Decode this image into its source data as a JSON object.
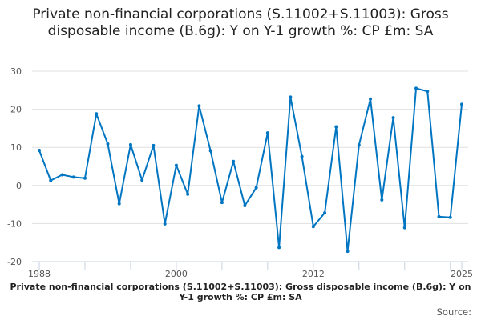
{
  "chart_data": {
    "type": "line",
    "title": "Private non-financial corporations (S.11002+S.11003): Gross disposable income (B.6g): Y on Y-1 growth %: CP £m: SA",
    "xlabel": "Private non-financial corporations (S.11002+S.11003): Gross disposable income (B.6g): Y on Y-1 growth %: CP £m: SA",
    "ylabel": "",
    "x": [
      1988,
      1989,
      1990,
      1991,
      1992,
      1993,
      1994,
      1995,
      1996,
      1997,
      1998,
      1999,
      2000,
      2001,
      2002,
      2003,
      2004,
      2005,
      2006,
      2007,
      2008,
      2009,
      2010,
      2011,
      2012,
      2013,
      2014,
      2015,
      2016,
      2017,
      2018,
      2019,
      2020,
      2021,
      2022,
      2023,
      2024,
      2025
    ],
    "series": [
      {
        "values": [
          9.2,
          1.3,
          2.8,
          2.2,
          1.9,
          18.8,
          10.9,
          -4.8,
          10.7,
          1.4,
          10.5,
          -10.1,
          5.3,
          -2.3,
          20.9,
          9.1,
          -4.5,
          6.3,
          -5.3,
          -0.6,
          13.8,
          -16.3,
          23.2,
          7.6,
          -10.8,
          -7.2,
          15.4,
          -17.3,
          10.6,
          22.7,
          -3.8,
          17.8,
          -11.1,
          25.5,
          24.7,
          -8.2,
          -8.4,
          21.3
        ]
      }
    ],
    "xticks": [
      "1988",
      "2000",
      "2012",
      "2025"
    ],
    "yticks": [
      "30",
      "20",
      "10",
      "0",
      "-10",
      "-20"
    ],
    "ylim": [
      -20,
      30
    ],
    "xlim": [
      1988,
      2025
    ],
    "grid": true,
    "line_color": "#0075c2",
    "source_label": "Source:"
  }
}
